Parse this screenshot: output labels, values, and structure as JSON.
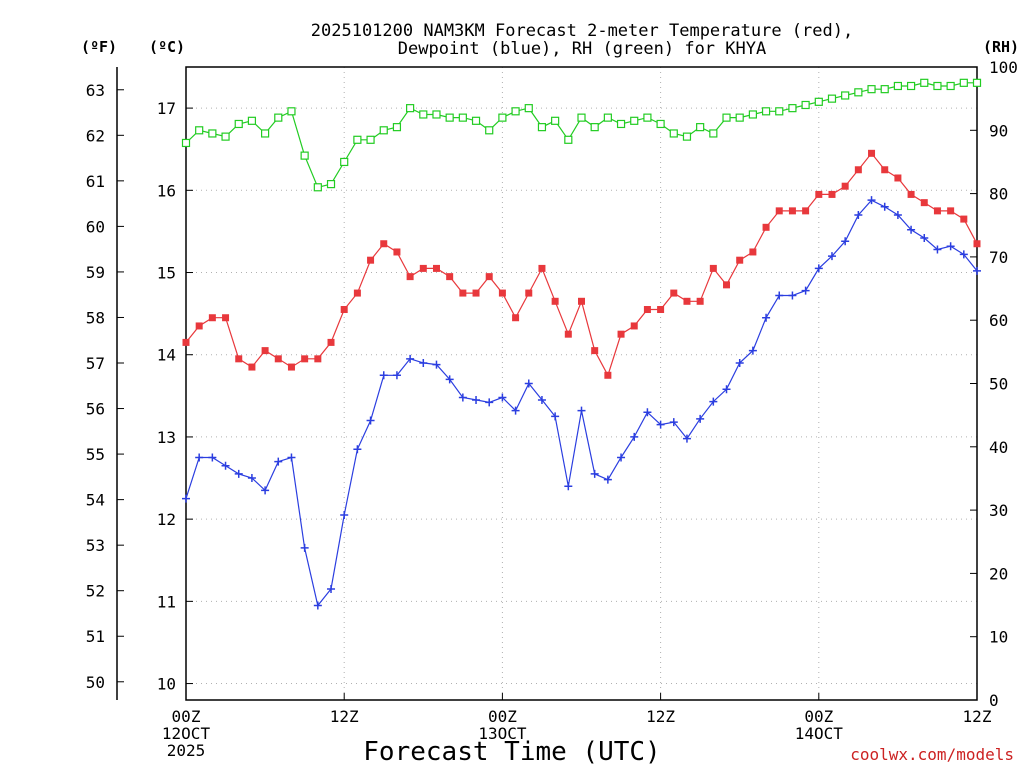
{
  "colors": {
    "temperature": "#e8383c",
    "dewpoint": "#2b3ee0",
    "rh": "#22cc22",
    "watermark": "#cc2222",
    "grid": "#b0b0b0"
  },
  "chart_data": {
    "type": "line",
    "title_line1": "2025101200 NAM3KM Forecast 2-meter Temperature (red),",
    "title_line2": "Dewpoint (blue), RH (green) for KHYA",
    "units": {
      "fahrenheit": "(ºF)",
      "celsius": "(ºC)",
      "rh": "(RH)"
    },
    "xlabel": "Forecast Time (UTC)",
    "xlim": [
      0,
      60
    ],
    "x_ticks": [
      {
        "x": 0,
        "lines": [
          "00Z",
          "12OCT",
          "2025"
        ]
      },
      {
        "x": 12,
        "lines": [
          "12Z"
        ]
      },
      {
        "x": 24,
        "lines": [
          "00Z",
          "13OCT"
        ]
      },
      {
        "x": 36,
        "lines": [
          "12Z"
        ]
      },
      {
        "x": 48,
        "lines": [
          "00Z",
          "14OCT"
        ]
      },
      {
        "x": 60,
        "lines": [
          "12Z"
        ]
      }
    ],
    "celsius_axis": {
      "range": [
        9.8,
        17.5
      ],
      "ticks": [
        "10",
        "11",
        "12",
        "13",
        "14",
        "15",
        "16",
        "17"
      ]
    },
    "fahrenheit_axis": {
      "range": [
        49.6,
        63.5
      ],
      "ticks": [
        "50",
        "51",
        "52",
        "53",
        "54",
        "55",
        "56",
        "57",
        "58",
        "59",
        "60",
        "61",
        "62",
        "63"
      ]
    },
    "rh_axis": {
      "range": [
        0,
        100
      ],
      "ticks": [
        "0",
        "10",
        "20",
        "30",
        "40",
        "50",
        "60",
        "70",
        "80",
        "90",
        "100"
      ]
    },
    "x": [
      0,
      1,
      2,
      3,
      4,
      5,
      6,
      7,
      8,
      9,
      10,
      11,
      12,
      13,
      14,
      15,
      16,
      17,
      18,
      19,
      20,
      21,
      22,
      23,
      24,
      25,
      26,
      27,
      28,
      29,
      30,
      31,
      32,
      33,
      34,
      35,
      36,
      37,
      38,
      39,
      40,
      41,
      42,
      43,
      44,
      45,
      46,
      47,
      48,
      49,
      50,
      51,
      52,
      53,
      54,
      55,
      56,
      57,
      58,
      59,
      60
    ],
    "series": [
      {
        "name": "Temperature",
        "axis": "celsius",
        "values": [
          14.15,
          14.35,
          14.45,
          14.45,
          13.95,
          13.85,
          14.05,
          13.95,
          13.85,
          13.95,
          13.95,
          14.15,
          14.55,
          14.75,
          15.15,
          15.35,
          15.25,
          14.95,
          15.05,
          15.05,
          14.95,
          14.75,
          14.75,
          14.95,
          14.75,
          14.45,
          14.75,
          15.05,
          14.65,
          14.25,
          14.65,
          14.05,
          13.75,
          14.25,
          14.35,
          14.55,
          14.55,
          14.75,
          14.65,
          14.65,
          15.05,
          14.85,
          15.15,
          15.25,
          15.55,
          15.75,
          15.75,
          15.75,
          15.95,
          15.95,
          16.05,
          16.25,
          16.45,
          16.25,
          16.15,
          15.95,
          15.85,
          15.75,
          15.75,
          15.65,
          15.35
        ]
      },
      {
        "name": "Dewpoint",
        "axis": "celsius",
        "values": [
          12.25,
          12.75,
          12.75,
          12.65,
          12.55,
          12.5,
          12.35,
          12.7,
          12.75,
          11.65,
          10.95,
          11.15,
          12.05,
          12.85,
          13.2,
          13.75,
          13.75,
          13.95,
          13.9,
          13.88,
          13.7,
          13.48,
          13.45,
          13.42,
          13.48,
          13.32,
          13.65,
          13.45,
          13.25,
          12.4,
          13.32,
          12.55,
          12.48,
          12.75,
          13.0,
          13.3,
          13.15,
          13.18,
          12.98,
          13.22,
          13.43,
          13.58,
          13.9,
          14.05,
          14.45,
          14.72,
          14.72,
          14.78,
          15.05,
          15.2,
          15.38,
          15.7,
          15.88,
          15.8,
          15.7,
          15.52,
          15.42,
          15.28,
          15.32,
          15.22,
          15.02
        ]
      },
      {
        "name": "RH",
        "axis": "rh",
        "values": [
          88,
          90,
          89.5,
          89,
          91,
          91.5,
          89.5,
          92,
          93,
          86,
          81,
          81.5,
          85,
          88.5,
          88.5,
          90,
          90.5,
          93.5,
          92.5,
          92.5,
          92,
          92,
          91.5,
          90,
          92,
          93,
          93.5,
          90.5,
          91.5,
          88.5,
          92,
          90.5,
          92,
          91,
          91.5,
          92,
          91,
          89.5,
          89,
          90.5,
          89.5,
          92,
          92,
          92.5,
          93,
          93,
          93.5,
          94,
          94.5,
          95,
          95.5,
          96,
          96.5,
          96.5,
          97,
          97,
          97.5,
          97,
          97,
          97.5,
          97.5
        ]
      }
    ]
  },
  "watermark": "coolwx.com/models"
}
